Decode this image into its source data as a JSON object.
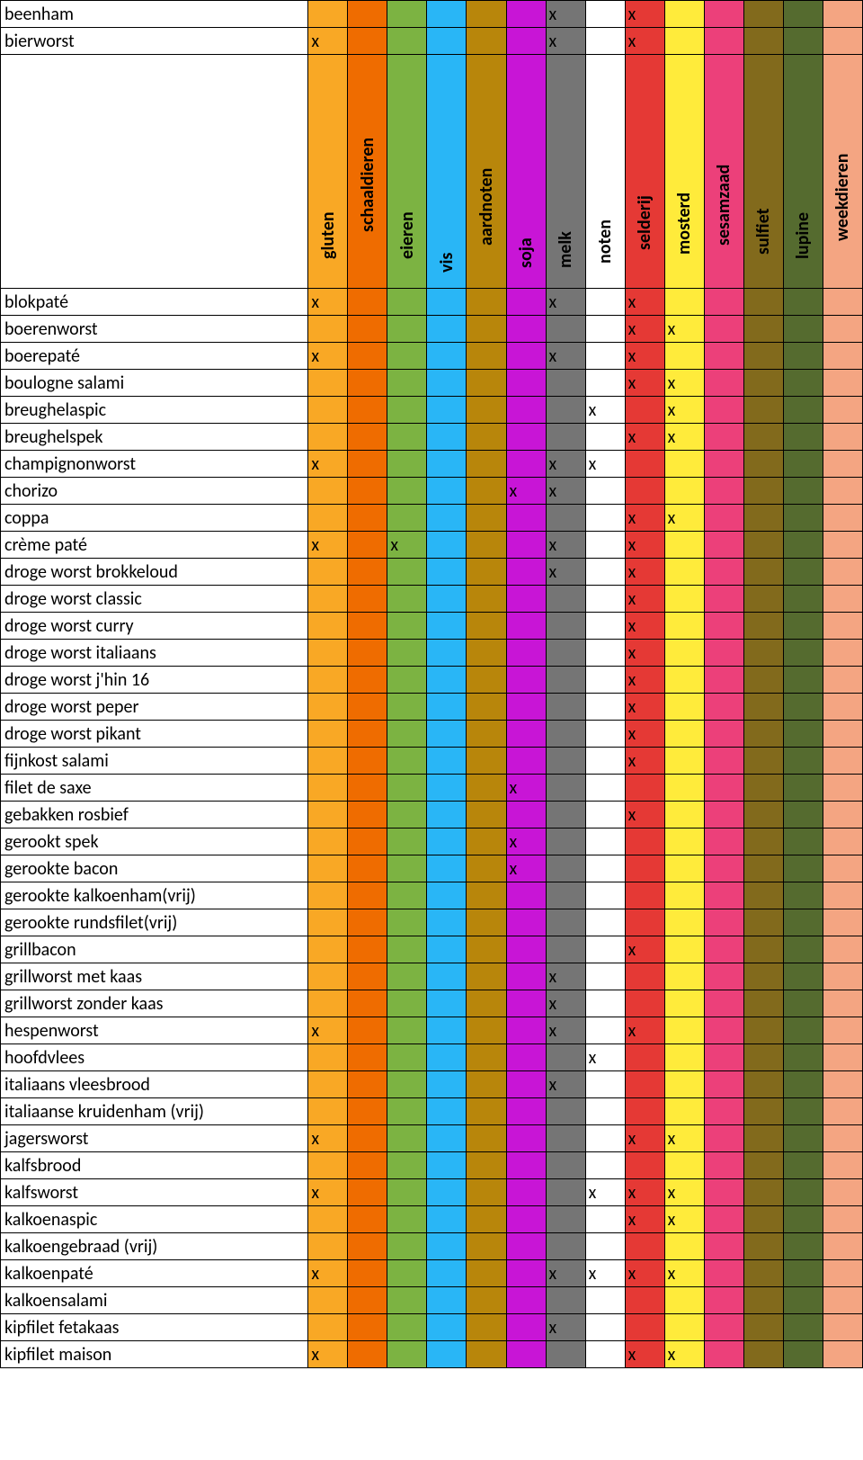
{
  "table": {
    "name_col_width": 342,
    "allergen_col_width": 44,
    "allergens": [
      {
        "key": "gluten",
        "label": "gluten",
        "color": "#f9a825"
      },
      {
        "key": "schaaldieren",
        "label": "schaaldieren",
        "color": "#ef6c00"
      },
      {
        "key": "eieren",
        "label": "eieren",
        "color": "#7cb342"
      },
      {
        "key": "vis",
        "label": "vis",
        "color": "#29b6f6"
      },
      {
        "key": "aardnoten",
        "label": "aardnoten",
        "color": "#b8860b"
      },
      {
        "key": "soja",
        "label": "soja",
        "color": "#c815d6"
      },
      {
        "key": "melk",
        "label": "melk",
        "color": "#757575"
      },
      {
        "key": "noten",
        "label": "noten",
        "color": "#ffffff"
      },
      {
        "key": "selderij",
        "label": "selderij",
        "color": "#e53935"
      },
      {
        "key": "mosterd",
        "label": "mosterd",
        "color": "#ffeb3b"
      },
      {
        "key": "sesamzaad",
        "label": "sesamzaad",
        "color": "#ec407a"
      },
      {
        "key": "sulfiet",
        "label": "sulfiet",
        "color": "#826a1c"
      },
      {
        "key": "lupine",
        "label": "lupine",
        "color": "#556b2f"
      },
      {
        "key": "weekdieren",
        "label": "weekdieren",
        "color": "#f4a582"
      }
    ],
    "top_rows": [
      {
        "name": "beenham",
        "marks": {
          "melk": "x",
          "selderij": "x"
        }
      },
      {
        "name": "bierworst",
        "marks": {
          "gluten": "x",
          "melk": "x",
          "selderij": "x"
        }
      }
    ],
    "rows": [
      {
        "name": "blokpaté",
        "marks": {
          "gluten": "x",
          "melk": "x",
          "selderij": "x"
        }
      },
      {
        "name": "boerenworst",
        "marks": {
          "selderij": "x",
          "mosterd": "x"
        }
      },
      {
        "name": "boerepaté",
        "marks": {
          "gluten": "x",
          "melk": "x",
          "selderij": "x"
        }
      },
      {
        "name": "boulogne salami",
        "marks": {
          "selderij": "x",
          "mosterd": "x"
        }
      },
      {
        "name": "breughelaspic",
        "marks": {
          "noten": "x",
          "mosterd": "x"
        }
      },
      {
        "name": "breughelspek",
        "marks": {
          "selderij": "x",
          "mosterd": "x"
        }
      },
      {
        "name": "champignonworst",
        "marks": {
          "gluten": "x",
          "melk": "x",
          "noten": "x"
        }
      },
      {
        "name": "chorizo",
        "marks": {
          "soja": "x",
          "melk": "x"
        }
      },
      {
        "name": "coppa",
        "marks": {
          "selderij": "x",
          "mosterd": "x"
        }
      },
      {
        "name": "crème paté",
        "marks": {
          "gluten": "x",
          "eieren": "x",
          "melk": "x",
          "selderij": "x"
        }
      },
      {
        "name": "droge worst brokkeloud",
        "marks": {
          "melk": "x",
          "selderij": "x"
        }
      },
      {
        "name": "droge worst classic",
        "marks": {
          "selderij": "x"
        }
      },
      {
        "name": "droge worst curry",
        "marks": {
          "selderij": "x"
        }
      },
      {
        "name": "droge worst italiaans",
        "marks": {
          "selderij": "x"
        }
      },
      {
        "name": "droge worst j'hin 16",
        "marks": {
          "selderij": "x"
        }
      },
      {
        "name": "droge worst peper",
        "marks": {
          "selderij": "x"
        }
      },
      {
        "name": "droge worst pikant",
        "marks": {
          "selderij": "x"
        }
      },
      {
        "name": "fijnkost salami",
        "marks": {
          "selderij": "x"
        }
      },
      {
        "name": "filet de saxe",
        "marks": {
          "soja": "x"
        }
      },
      {
        "name": "gebakken rosbief",
        "marks": {
          "selderij": "x"
        }
      },
      {
        "name": "gerookt spek",
        "marks": {
          "soja": "x"
        }
      },
      {
        "name": "gerookte bacon",
        "marks": {
          "soja": "x"
        }
      },
      {
        "name": "gerookte kalkoenham(vrij)",
        "marks": {}
      },
      {
        "name": "gerookte rundsfilet(vrij)",
        "marks": {}
      },
      {
        "name": "grillbacon",
        "marks": {
          "selderij": "x"
        }
      },
      {
        "name": "grillworst met kaas",
        "marks": {
          "melk": "x"
        }
      },
      {
        "name": "grillworst zonder kaas",
        "marks": {
          "melk": "x"
        }
      },
      {
        "name": "hespenworst",
        "marks": {
          "gluten": "x",
          "melk": "x",
          "selderij": "x"
        }
      },
      {
        "name": "hoofdvlees",
        "marks": {
          "noten": "x"
        }
      },
      {
        "name": "italiaans vleesbrood",
        "marks": {
          "melk": "x"
        }
      },
      {
        "name": "italiaanse kruidenham (vrij)",
        "marks": {}
      },
      {
        "name": "jagersworst",
        "marks": {
          "gluten": "x",
          "selderij": "x",
          "mosterd": "x"
        }
      },
      {
        "name": "kalfsbrood",
        "marks": {}
      },
      {
        "name": "kalfsworst",
        "marks": {
          "gluten": "x",
          "noten": "x",
          "selderij": "x",
          "mosterd": "x"
        }
      },
      {
        "name": "kalkoenaspic",
        "marks": {
          "selderij": "x",
          "mosterd": "x"
        }
      },
      {
        "name": "kalkoengebraad (vrij)",
        "marks": {}
      },
      {
        "name": "kalkoenpaté",
        "marks": {
          "gluten": "x",
          "melk": "x",
          "noten": "x",
          "selderij": "x",
          "mosterd": "x"
        }
      },
      {
        "name": "kalkoensalami",
        "marks": {}
      },
      {
        "name": "kipfilet fetakaas",
        "marks": {
          "melk": "x"
        }
      },
      {
        "name": "kipfilet maison",
        "marks": {
          "gluten": "x",
          "selderij": "x",
          "mosterd": "x"
        }
      }
    ]
  }
}
